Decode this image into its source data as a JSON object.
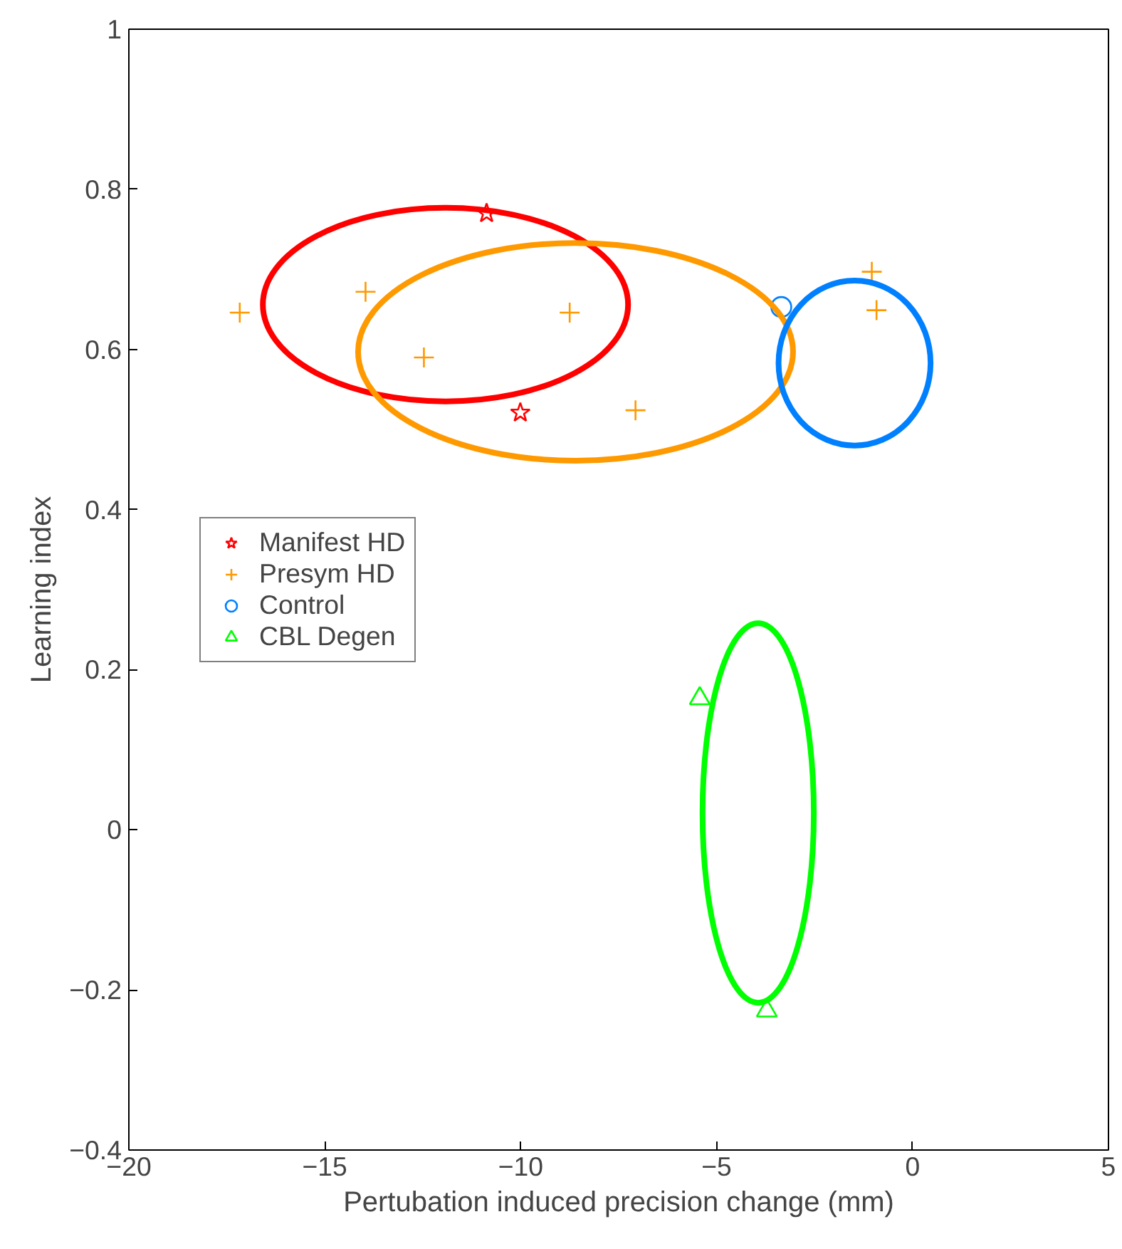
{
  "chart_data": {
    "type": "scatter",
    "xlabel": "Pertubation induced precision change (mm)",
    "ylabel": "Learning index",
    "xlim": [
      -20,
      5
    ],
    "xticks": [
      -20,
      -15,
      -10,
      -5,
      0,
      5
    ],
    "ylim": [
      -0.4,
      1
    ],
    "yticks": [
      -0.4,
      -0.2,
      0,
      0.2,
      0.4,
      0.6,
      0.8,
      1
    ],
    "grid": false,
    "legend": "left",
    "series": [
      {
        "name": "Manifest HD",
        "color": "#ff0000",
        "marker": "star",
        "x": [
          -10.87,
          -10.01
        ],
        "values": [
          0.77,
          0.521
        ]
      },
      {
        "name": "Presym HD",
        "color": "#ff9900",
        "marker": "cross",
        "x": [
          -17.17,
          -13.96,
          -12.47,
          -8.75,
          -7.07,
          -1.04,
          -0.92
        ],
        "values": [
          0.646,
          0.672,
          0.59,
          0.646,
          0.524,
          0.697,
          0.649
        ]
      },
      {
        "name": "Control",
        "color": "#0080ff",
        "marker": "circle",
        "x": [
          -3.35
        ],
        "values": [
          0.653
        ]
      },
      {
        "name": "CBL Degen",
        "color": "#00ff00",
        "marker": "triangle",
        "x": [
          -5.43,
          -3.72
        ],
        "values": [
          0.164,
          -0.226
        ]
      }
    ]
  }
}
